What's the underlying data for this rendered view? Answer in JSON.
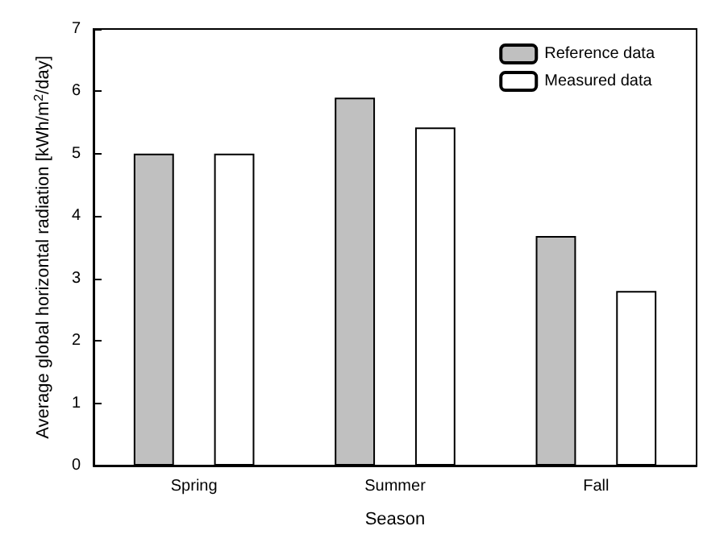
{
  "chart_data": {
    "type": "bar",
    "xlabel": "Season",
    "ylabel": "Average global horizontal radiation [kWh/m$^{2}$/day]",
    "categories": [
      "Spring",
      "Summer",
      "Fall"
    ],
    "series": [
      {
        "name": "Reference data",
        "color": "#c0c0c0",
        "values": [
          5.0,
          5.9,
          3.68
        ]
      },
      {
        "name": "Measured data",
        "color": "#ffffff",
        "values": [
          5.0,
          5.42,
          2.8
        ]
      }
    ],
    "ylim": [
      0,
      7
    ],
    "yticks": [
      0,
      1,
      2,
      3,
      4,
      5,
      6,
      7
    ],
    "grid": false,
    "legend": "top right"
  }
}
